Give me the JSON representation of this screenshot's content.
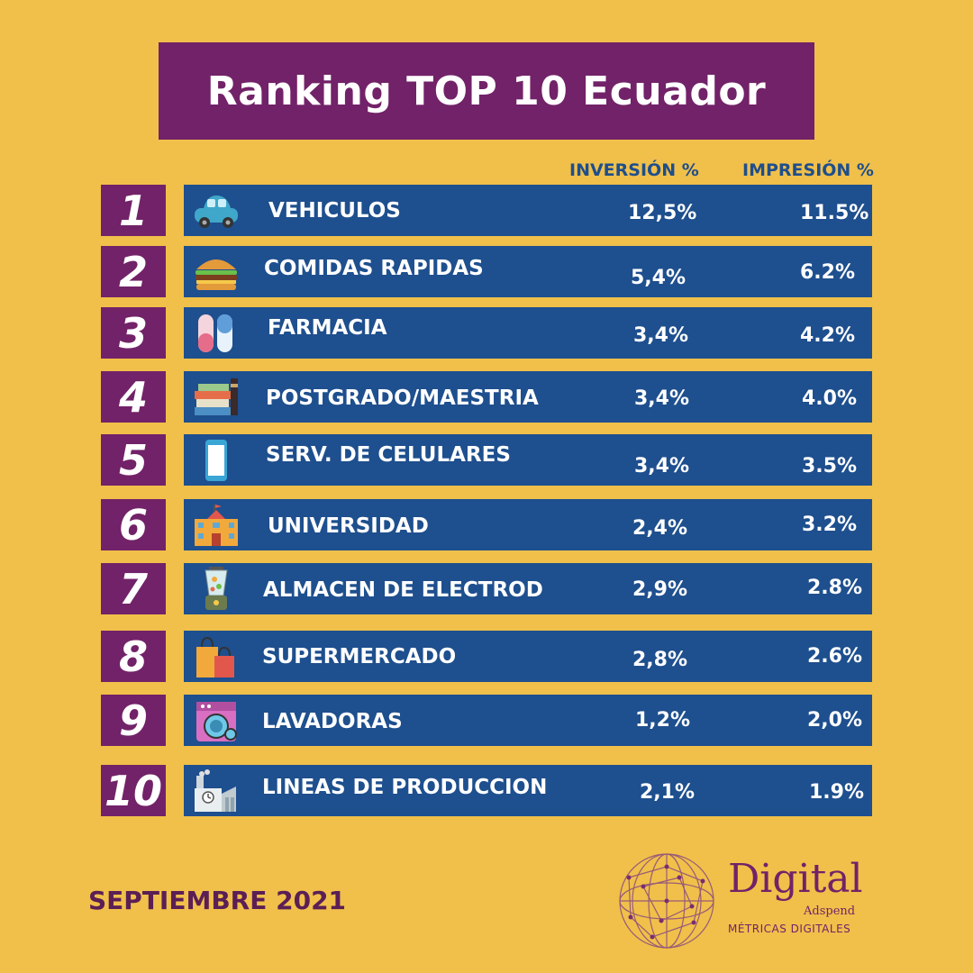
{
  "title": "Ranking TOP 10 Ecuador",
  "headers": {
    "inversion": "INVERSIÓN %",
    "impresion": "IMPRESIÓN %"
  },
  "footer": "SEPTIEMBRE 2021",
  "logo": {
    "word": "Digital",
    "sub": "Adspend",
    "tag": "MÉTRICAS DIGITALES"
  },
  "colors": {
    "background": "#F0C04A",
    "purple": "#722268",
    "bar": "#1E4F8E",
    "header_text": "#1F4E8C"
  },
  "chart_data": {
    "type": "table",
    "title": "Ranking TOP 10 Ecuador",
    "columns": [
      "INVERSIÓN %",
      "IMPRESIÓN %"
    ],
    "rows": [
      {
        "rank": "1",
        "category": "VEHICULOS",
        "icon": "car-icon",
        "inversion": "12,5%",
        "impresion": "11.5%"
      },
      {
        "rank": "2",
        "category": "COMIDAS RAPIDAS",
        "icon": "burger-icon",
        "inversion": "5,4%",
        "impresion": "6.2%"
      },
      {
        "rank": "3",
        "category": "FARMACIA",
        "icon": "pills-icon",
        "inversion": "3,4%",
        "impresion": "4.2%"
      },
      {
        "rank": "4",
        "category": "POSTGRADO/MAESTRIA",
        "icon": "books-icon",
        "inversion": "3,4%",
        "impresion": "4.0%"
      },
      {
        "rank": "5",
        "category": "SERV. DE CELULARES",
        "icon": "phone-icon",
        "inversion": "3,4%",
        "impresion": "3.5%"
      },
      {
        "rank": "6",
        "category": "UNIVERSIDAD",
        "icon": "school-icon",
        "inversion": "2,4%",
        "impresion": "3.2%"
      },
      {
        "rank": "7",
        "category": "ALMACEN DE ELECTROD",
        "icon": "blender-icon",
        "inversion": "2,9%",
        "impresion": "2.8%"
      },
      {
        "rank": "8",
        "category": "SUPERMERCADO",
        "icon": "shopping-bags-icon",
        "inversion": "2,8%",
        "impresion": "2.6%"
      },
      {
        "rank": "9",
        "category": "LAVADORAS",
        "icon": "washing-machine-icon",
        "inversion": "1,2%",
        "impresion": "2,0%"
      },
      {
        "rank": "10",
        "category": "LINEAS DE PRODUCCION",
        "icon": "factory-icon",
        "inversion": "2,1%",
        "impresion": "1.9%"
      }
    ]
  }
}
